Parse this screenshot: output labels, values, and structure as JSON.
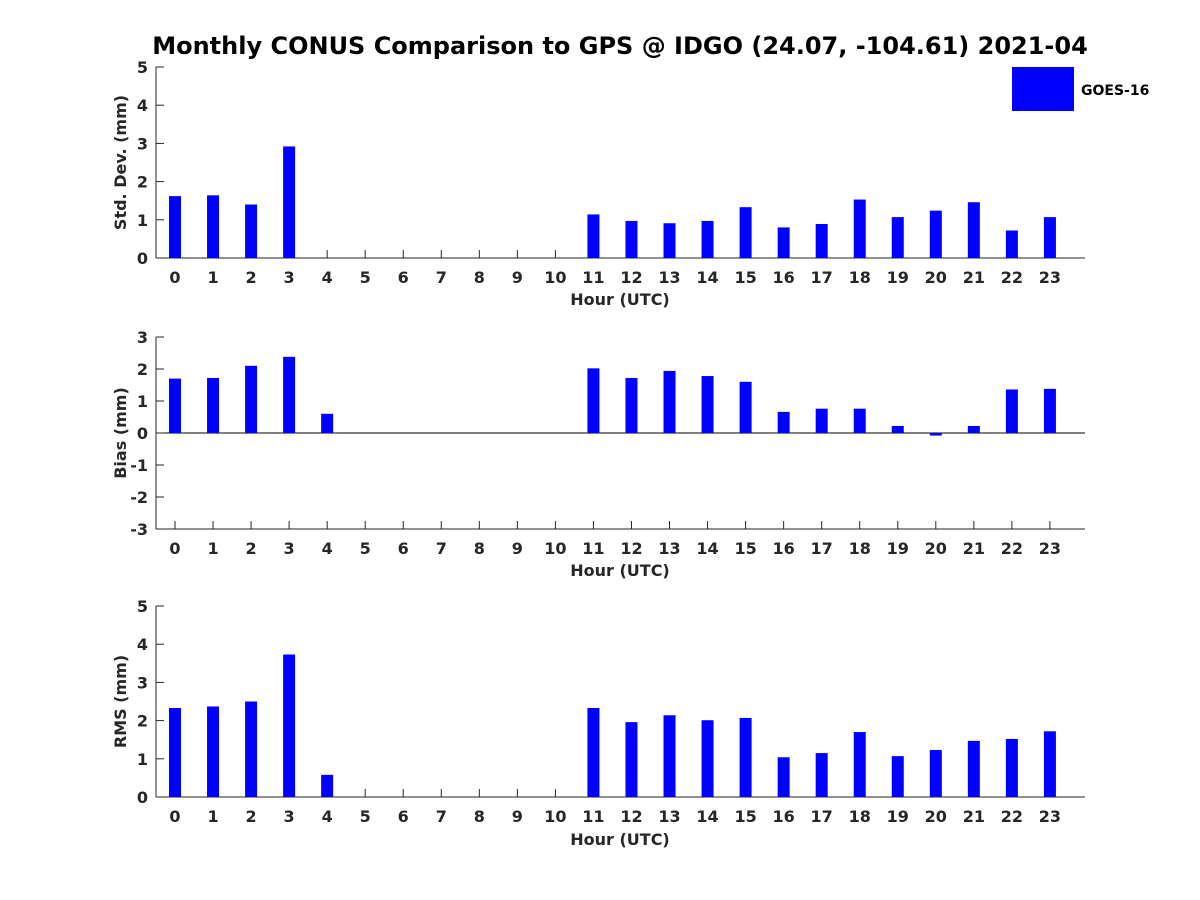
{
  "chart_title": "Monthly CONUS Comparison to GPS @ IDGO (24.07, -104.61) 2021-04",
  "legend": {
    "label": "GOES-16"
  },
  "chart_data": [
    {
      "type": "bar",
      "title": "Monthly CONUS Comparison to GPS @ IDGO (24.07, -104.61) 2021-04",
      "series_name": "GOES-16",
      "color": "#0000ff",
      "xlabel": "Hour (UTC)",
      "ylabel": "Std. Dev. (mm)",
      "ylim": [
        0,
        5
      ],
      "yticks": [
        "0",
        "1",
        "2",
        "3",
        "4",
        "5"
      ],
      "categories": [
        "0",
        "1",
        "2",
        "3",
        "4",
        "5",
        "6",
        "7",
        "8",
        "9",
        "10",
        "11",
        "12",
        "13",
        "14",
        "15",
        "16",
        "17",
        "18",
        "19",
        "20",
        "21",
        "22",
        "23"
      ],
      "values": [
        1.62,
        1.64,
        1.4,
        2.92,
        0,
        0,
        0,
        0,
        0,
        0,
        0,
        1.14,
        0.97,
        0.91,
        0.97,
        1.33,
        0.8,
        0.89,
        1.53,
        1.07,
        1.24,
        1.46,
        0.72,
        1.07
      ]
    },
    {
      "type": "bar",
      "series_name": "GOES-16",
      "color": "#0000ff",
      "xlabel": "Hour (UTC)",
      "ylabel": "Bias (mm)",
      "ylim": [
        -3,
        3
      ],
      "yticks": [
        "-3",
        "-2",
        "-1",
        "0",
        "1",
        "2",
        "3"
      ],
      "categories": [
        "0",
        "1",
        "2",
        "3",
        "4",
        "5",
        "6",
        "7",
        "8",
        "9",
        "10",
        "11",
        "12",
        "13",
        "14",
        "15",
        "16",
        "17",
        "18",
        "19",
        "20",
        "21",
        "22",
        "23"
      ],
      "values": [
        1.7,
        1.72,
        2.1,
        2.38,
        0.6,
        0,
        0,
        0,
        0,
        0,
        0,
        2.02,
        1.72,
        1.94,
        1.78,
        1.6,
        0.66,
        0.76,
        0.76,
        0.22,
        -0.08,
        0.22,
        1.36,
        1.38
      ]
    },
    {
      "type": "bar",
      "series_name": "GOES-16",
      "color": "#0000ff",
      "xlabel": "Hour (UTC)",
      "ylabel": "RMS (mm)",
      "ylim": [
        0,
        5
      ],
      "yticks": [
        "0",
        "1",
        "2",
        "3",
        "4",
        "5"
      ],
      "categories": [
        "0",
        "1",
        "2",
        "3",
        "4",
        "5",
        "6",
        "7",
        "8",
        "9",
        "10",
        "11",
        "12",
        "13",
        "14",
        "15",
        "16",
        "17",
        "18",
        "19",
        "20",
        "21",
        "22",
        "23"
      ],
      "values": [
        2.33,
        2.37,
        2.5,
        3.73,
        0.58,
        0,
        0,
        0,
        0,
        0,
        0,
        2.33,
        1.96,
        2.14,
        2.01,
        2.07,
        1.04,
        1.15,
        1.7,
        1.07,
        1.23,
        1.47,
        1.52,
        1.72
      ]
    }
  ]
}
